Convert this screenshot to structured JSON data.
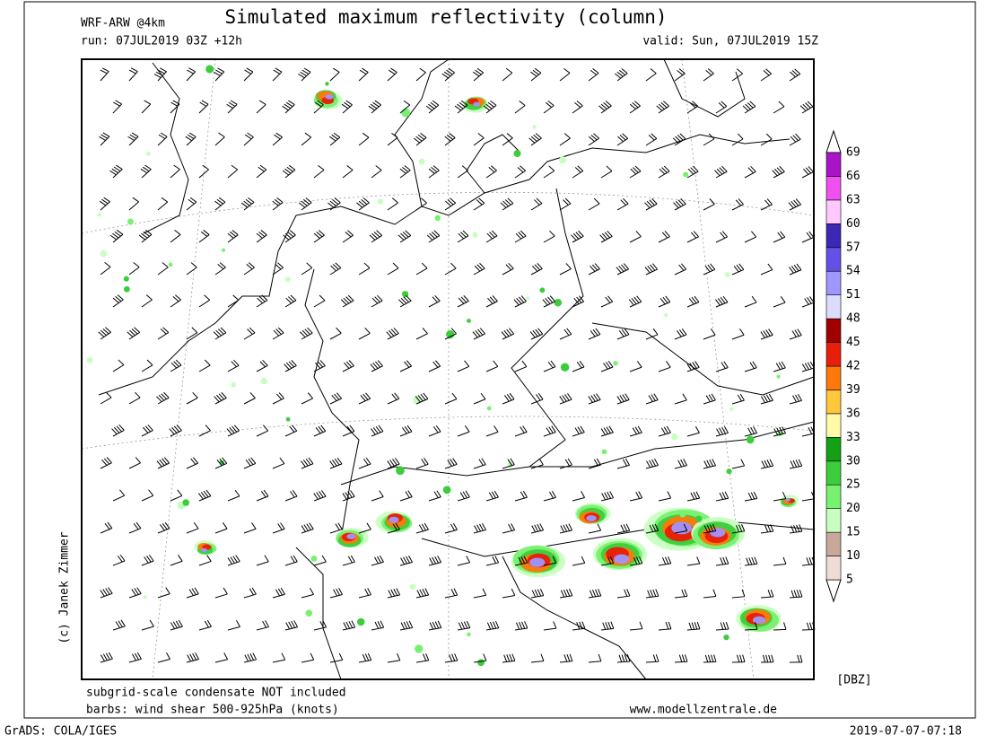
{
  "header": {
    "model": "WRF-ARW @4km",
    "title": "Simulated maximum reflectivity (column)",
    "run": "run: 07JUL2019 03Z +12h",
    "valid": "valid: Sun, 07JUL2019 15Z"
  },
  "credit": "(c) Janek Zimmer",
  "colorbar": {
    "unit": "[DBZ]",
    "levels": [
      5,
      10,
      15,
      20,
      25,
      30,
      33,
      36,
      39,
      42,
      45,
      48,
      51,
      54,
      57,
      60,
      63,
      66,
      69
    ],
    "colors": [
      "#f0dcd6",
      "#c8a89a",
      "#c8ffc0",
      "#78f070",
      "#3ccc3c",
      "#14a014",
      "#fffaaa",
      "#ffc83c",
      "#ff780a",
      "#e61e0a",
      "#a00000",
      "#dcdcff",
      "#a096ff",
      "#6450e6",
      "#3c28b4",
      "#ffc8ff",
      "#f050f0",
      "#aa14c8"
    ]
  },
  "footer": {
    "note1": "subgrid-scale condensate NOT included",
    "note2": "barbs: wind shear 500-925hPa (knots)",
    "site": "www.modellzentrale.de",
    "software": "GrADS: COLA/IGES",
    "timestamp": "2019-07-07-07:18"
  }
}
